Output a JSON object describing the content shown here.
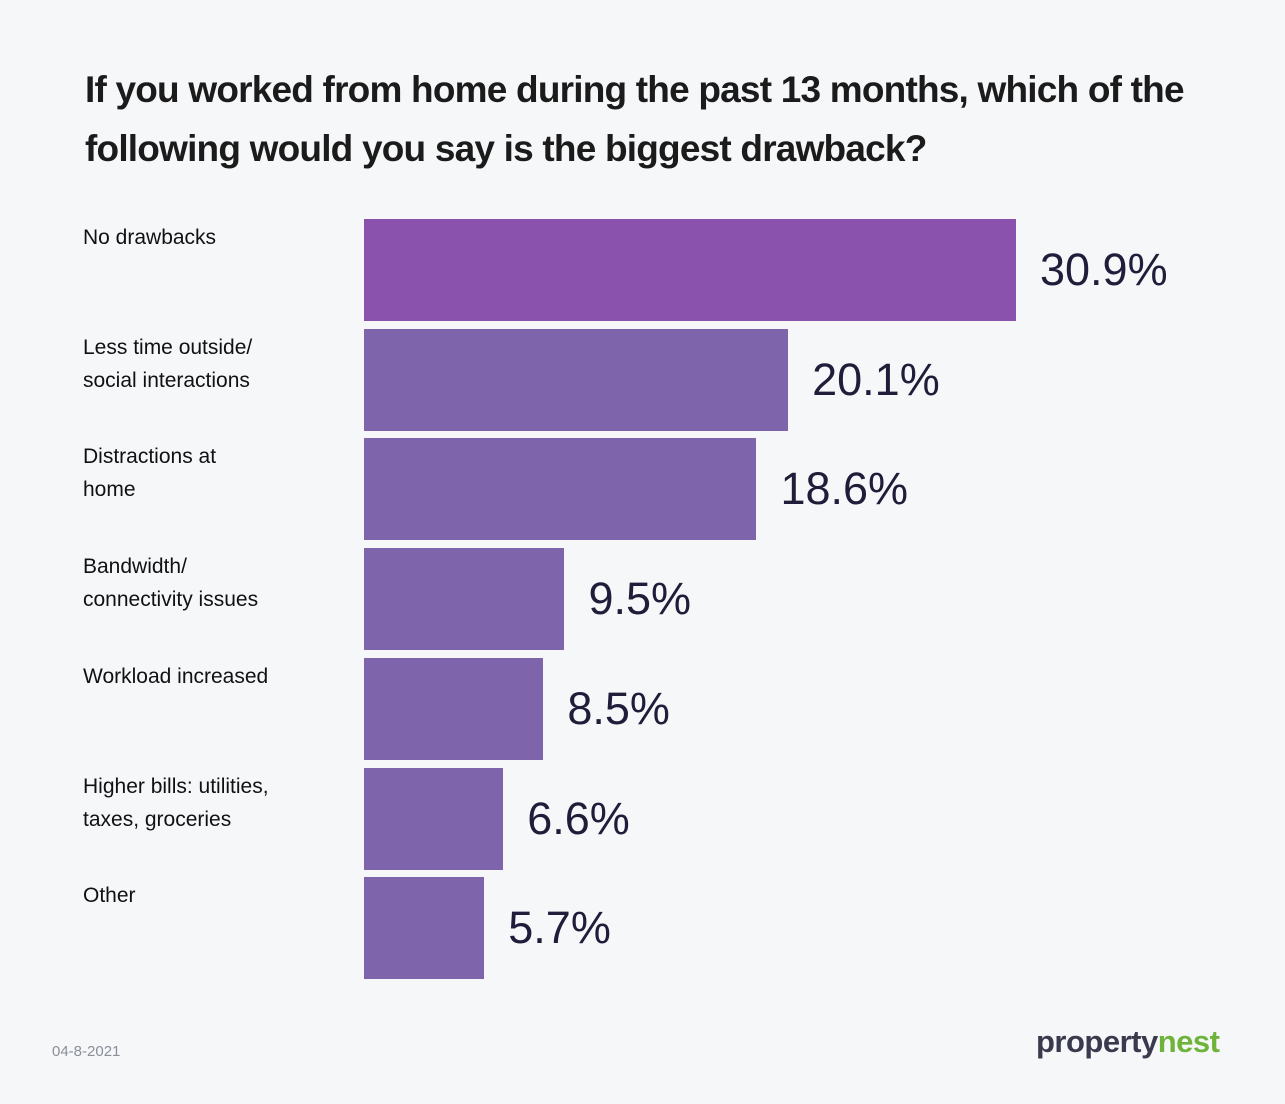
{
  "chart_data": {
    "type": "bar",
    "orientation": "horizontal",
    "title": "If you worked from home during the past 13 months, which of the following would you say is the biggest drawback?",
    "categories": [
      "No drawbacks",
      "Less time outside/\nsocial interactions",
      "Distractions at\nhome",
      "Bandwidth/\nconnectivity issues",
      "Workload increased",
      "Higher bills: utilities,\ntaxes, groceries",
      "Other"
    ],
    "values": [
      30.9,
      20.1,
      18.6,
      9.5,
      8.5,
      6.6,
      5.7
    ],
    "value_labels": [
      "30.9%",
      "20.1%",
      "18.6%",
      "9.5%",
      "8.5%",
      "6.6%",
      "5.7%"
    ],
    "colors": [
      "#8a51ad",
      "#7e65ab",
      "#7e65ab",
      "#7e65ab",
      "#7e65ab",
      "#7e65ab",
      "#7e65ab"
    ],
    "date": "04-8-2021",
    "logo": [
      "property",
      "nest"
    ]
  }
}
